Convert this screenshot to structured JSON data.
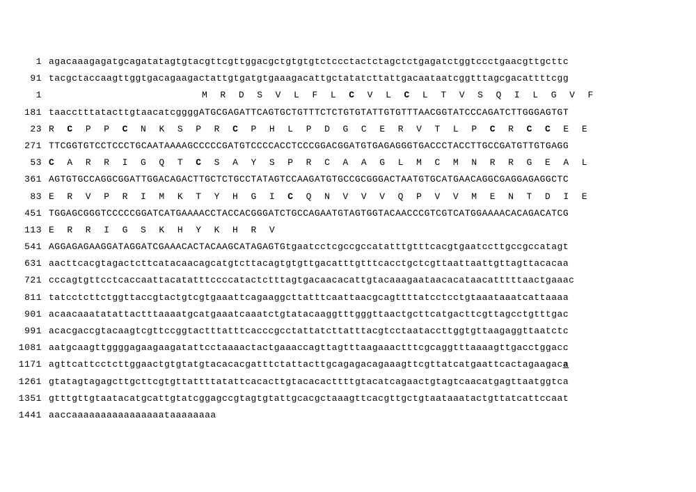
{
  "lines": [
    {
      "num": "1",
      "type": "nuc",
      "text": "agacaaagagatgcagatatagtgtacgttcgttggacgctgtgtgtctccctactctagctctgagatctggtccctgaacgttgcttc"
    },
    {
      "num": "91",
      "type": "nuc",
      "text": "tacgctaccaagttggtgacagaagactattgtgatgtgaaagacattgctatatcttattgacaataatcggtttagcgacattttcgg"
    },
    {
      "num": "1",
      "type": "aa",
      "runs": [
        {
          "t": "                         M  R  D  S  V  L  F  L  "
        },
        {
          "t": "C",
          "b": true
        },
        {
          "t": "  V  L  "
        },
        {
          "t": "C",
          "b": true
        },
        {
          "t": "  L  T  V  S  Q  I  L  G  V  F"
        }
      ]
    },
    {
      "num": "181",
      "type": "nuc",
      "text": "taacctttatacttgtaacatcggggATGCGAGATTCAGTGCTGTTTCTCTGTGTATTGTGTTTAACGGTATCCCAGATCTTGGGAGTGT"
    },
    {
      "num": "23",
      "type": "aa",
      "runs": [
        {
          "t": "R  "
        },
        {
          "t": "C",
          "b": true
        },
        {
          "t": "  P  P  "
        },
        {
          "t": "C",
          "b": true
        },
        {
          "t": "  N  K  S  P  R  "
        },
        {
          "t": "C",
          "b": true
        },
        {
          "t": "  P  H  L  P  D  G  C  E  R  V  T  L  P  "
        },
        {
          "t": "C",
          "b": true
        },
        {
          "t": "  R  "
        },
        {
          "t": "C",
          "b": true
        },
        {
          "t": "  "
        },
        {
          "t": "C",
          "b": true
        },
        {
          "t": "  E  E"
        }
      ]
    },
    {
      "num": "271",
      "type": "nuc",
      "text": "TTCGGTGTCCTCCCTGCAATAAAAGCCCCCGATGTCCCCACCTCCCGGACGGATGTGAGAGGGTGACCCTACCTTGCCGATGTTGTGAGG"
    },
    {
      "num": "53",
      "type": "aa",
      "runs": [
        {
          "t": "C",
          "b": true
        },
        {
          "t": "  A  R  R  I  G  Q  T  "
        },
        {
          "t": "C",
          "b": true
        },
        {
          "t": "  S  A  Y  S  P  R  C  A  A  G  L  M  C  M  N  R  R  G  E  A  L"
        }
      ]
    },
    {
      "num": "361",
      "type": "nuc",
      "text": "AGTGTGCCAGGCGGATTGGACAGACTTGCTCTGCCTATAGTCCAAGATGTGCCGCGGGACTAATGTGCATGAACAGGCGAGGAGAGGCTC"
    },
    {
      "num": "83",
      "type": "aa",
      "runs": [
        {
          "t": "E  R  V  P  R  I  M  K  T  Y  H  G  I  "
        },
        {
          "t": "C",
          "b": true
        },
        {
          "t": "  Q  N  V  V  V  Q  P  V  V  M  E  N  T  D  I  E"
        }
      ]
    },
    {
      "num": "451",
      "type": "nuc",
      "text": "TGGAGCGGGTCCCCCGGATCATGAAAACCTACCACGGGATCTGCCAGAATGTAGTGGTACAACCCGTCGTCATGGAAAACACAGACATCG"
    },
    {
      "num": "113",
      "type": "aa",
      "runs": [
        {
          "t": "E  R  R  I  G  S  K  H  Y  K  H  R  V"
        }
      ]
    },
    {
      "num": "541",
      "type": "nuc",
      "text": "AGGAGAGAAGGATAGGATCGAAACACTACAAGCATAGAGTGtgaatcctcgccgccatatttgtttcacgtgaatccttgccgccatagt"
    },
    {
      "num": "631",
      "type": "nuc",
      "text": "aacttcacgtagactcttcatacaacagcatgtcttacagtgtgttgacatttgtttcacctgctcgttaattaattgttagttacacaa"
    },
    {
      "num": "721",
      "type": "nuc",
      "text": "cccagtgttcctcaccaattacatatttccccatactctttagtgacaacacattgtacaaagaataacacataacatttttaactgaaac"
    },
    {
      "num": "811",
      "type": "nuc",
      "text": "tatcctcttctggttaccgtactgtcgtgaaattcagaaggcttatttcaattaacgcagttttatcctcctgtaaataaatcattaaaa"
    },
    {
      "num": "901",
      "type": "nuc",
      "text": "acaacaaatatattactttaaaatgcatgaaatcaaatctgtatacaaggtttgggttaactgcttcatgacttcgttagcctgtttgac"
    },
    {
      "num": "991",
      "type": "nuc",
      "text": "acacgaccgtacaagtcgttccggtactttatttcacccgcctattatcttatttacgtcctaataccttggtgttaagaggttaatctc"
    },
    {
      "num": "1081",
      "type": "nuc",
      "text": "aatgcaagttggggagaagaagatattcctaaaactactgaaaccagttagtttaagaaactttcgcaggtttaaaagttgacctggacc"
    },
    {
      "num": "1171",
      "type": "nuc",
      "runs": [
        {
          "t": "agttcattcctcttggaactgtgtatgtacacacgatttctattacttgcagagacagaaagttcgttatcatgaattcactagaagac"
        },
        {
          "t": "a",
          "u": true
        }
      ]
    },
    {
      "num": "1261",
      "type": "nuc",
      "text": "gtatagtagagcttgcttcgtgttattttatattcacacttgtacacacttttgtacatcagaactgtagtcaacatgagttaatggtca"
    },
    {
      "num": "1351",
      "type": "nuc",
      "text": "gtttgttgtaatacatgcattgtatcggagccgtagtgtattgcacgctaaagttcacgttgctgtaataaatactgttatcattccaat"
    },
    {
      "num": "1441",
      "type": "nuc",
      "text": "aaccaaaaaaaaaaaaaaaataaaaaaaa"
    }
  ]
}
